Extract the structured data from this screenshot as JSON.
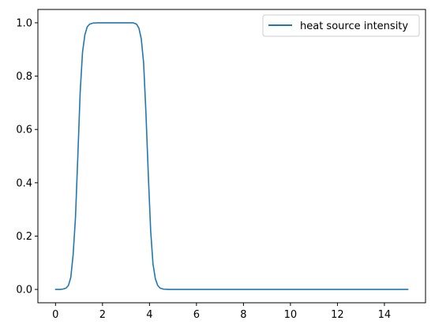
{
  "chart_data": {
    "type": "line",
    "title": "",
    "xlabel": "",
    "ylabel": "",
    "xlim": [
      -0.75,
      15.75
    ],
    "ylim": [
      -0.05,
      1.05
    ],
    "xticks": [
      0,
      2,
      4,
      6,
      8,
      10,
      12,
      14
    ],
    "yticks": [
      0.0,
      0.2,
      0.4,
      0.6,
      0.8,
      1.0
    ],
    "ytick_labels": [
      "0.0",
      "0.2",
      "0.4",
      "0.6",
      "0.8",
      "1.0"
    ],
    "grid": false,
    "legend_position": "top-right",
    "series": [
      {
        "name": "heat source intensity",
        "color": "#1f77b4",
        "x": [
          0.0,
          0.2,
          0.3,
          0.45,
          0.55,
          0.65,
          0.75,
          0.85,
          0.95,
          1.05,
          1.15,
          1.25,
          1.35,
          1.45,
          1.6,
          1.8,
          2.0,
          2.5,
          3.0,
          3.3,
          3.45,
          3.55,
          3.65,
          3.75,
          3.85,
          3.95,
          4.05,
          4.15,
          4.25,
          4.35,
          4.45,
          4.6,
          4.8,
          5.0,
          6.0,
          8.0,
          10.0,
          12.0,
          14.0,
          15.0
        ],
        "y": [
          0.0,
          0.0,
          0.001,
          0.005,
          0.015,
          0.045,
          0.13,
          0.27,
          0.5,
          0.74,
          0.89,
          0.955,
          0.985,
          0.995,
          0.999,
          1.0,
          1.0,
          1.0,
          1.0,
          1.0,
          0.995,
          0.98,
          0.94,
          0.85,
          0.66,
          0.43,
          0.22,
          0.095,
          0.04,
          0.015,
          0.005,
          0.001,
          0.0,
          0.0,
          0.0,
          0.0,
          0.0,
          0.0,
          0.0,
          0.0
        ]
      }
    ]
  }
}
